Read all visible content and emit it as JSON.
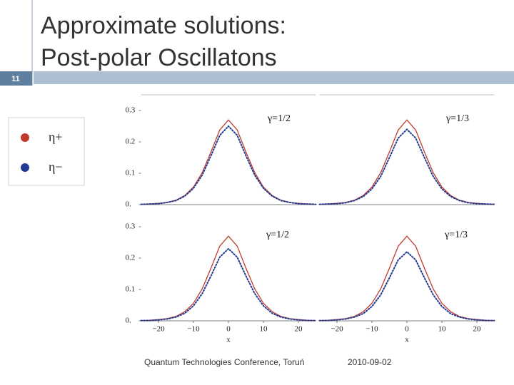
{
  "slide": {
    "number": "11",
    "title": "Approximate solutions: Post-polar Oscillatons",
    "footer": "Quantum Technologies Conference, Toruń",
    "date": "2010-09-02"
  },
  "chart_data": [
    {
      "type": "line",
      "annotation": "γ=1/2",
      "x": [
        -25,
        -22.5,
        -20,
        -17.5,
        -15,
        -12.5,
        -10,
        -7.5,
        -5,
        -2.5,
        0,
        2.5,
        5,
        7.5,
        10,
        12.5,
        15,
        17.5,
        20,
        22.5,
        25
      ],
      "series": [
        {
          "name": "η+",
          "color": "#c0392b",
          "values": [
            0.001,
            0.002,
            0.004,
            0.007,
            0.014,
            0.029,
            0.056,
            0.102,
            0.168,
            0.238,
            0.27,
            0.238,
            0.168,
            0.102,
            0.056,
            0.029,
            0.014,
            0.007,
            0.004,
            0.002,
            0.001
          ]
        },
        {
          "name": "η−",
          "color": "#1f3a93",
          "values": [
            0.001,
            0.002,
            0.003,
            0.007,
            0.013,
            0.027,
            0.052,
            0.094,
            0.156,
            0.221,
            0.25,
            0.221,
            0.156,
            0.094,
            0.052,
            0.027,
            0.013,
            0.007,
            0.003,
            0.002,
            0.001
          ]
        }
      ],
      "xlim": [
        -25,
        25
      ],
      "ylim": [
        0,
        0.3
      ],
      "yticks": [
        {
          "value": 0,
          "label": "0."
        },
        0.1,
        0.2,
        0.3
      ]
    },
    {
      "type": "line",
      "annotation": "γ=1/3",
      "x": [
        -25,
        -22.5,
        -20,
        -17.5,
        -15,
        -12.5,
        -10,
        -7.5,
        -5,
        -2.5,
        0,
        2.5,
        5,
        7.5,
        10,
        12.5,
        15,
        17.5,
        20,
        22.5,
        25
      ],
      "series": [
        {
          "name": "η+",
          "color": "#c0392b",
          "values": [
            0.001,
            0.002,
            0.004,
            0.007,
            0.014,
            0.029,
            0.056,
            0.102,
            0.168,
            0.238,
            0.27,
            0.238,
            0.168,
            0.102,
            0.056,
            0.029,
            0.014,
            0.007,
            0.004,
            0.002,
            0.001
          ]
        },
        {
          "name": "η−",
          "color": "#1f3a93",
          "values": [
            0.001,
            0.002,
            0.003,
            0.006,
            0.013,
            0.026,
            0.05,
            0.09,
            0.15,
            0.212,
            0.24,
            0.212,
            0.15,
            0.09,
            0.05,
            0.026,
            0.013,
            0.006,
            0.003,
            0.002,
            0.001
          ]
        }
      ],
      "xlim": [
        -25,
        25
      ],
      "ylim": [
        0,
        0.3
      ]
    },
    {
      "type": "line",
      "annotation": "γ=1/2",
      "xlabel": "x",
      "x": [
        -25,
        -22.5,
        -20,
        -17.5,
        -15,
        -12.5,
        -10,
        -7.5,
        -5,
        -2.5,
        0,
        2.5,
        5,
        7.5,
        10,
        12.5,
        15,
        17.5,
        20,
        22.5,
        25
      ],
      "series": [
        {
          "name": "η+",
          "color": "#c0392b",
          "values": [
            0.001,
            0.002,
            0.004,
            0.007,
            0.014,
            0.029,
            0.056,
            0.102,
            0.168,
            0.238,
            0.27,
            0.238,
            0.168,
            0.102,
            0.056,
            0.029,
            0.014,
            0.007,
            0.004,
            0.002,
            0.001
          ]
        },
        {
          "name": "η−",
          "color": "#1f3a93",
          "values": [
            0.001,
            0.001,
            0.003,
            0.006,
            0.012,
            0.024,
            0.048,
            0.087,
            0.143,
            0.203,
            0.23,
            0.203,
            0.143,
            0.087,
            0.048,
            0.024,
            0.012,
            0.006,
            0.003,
            0.001,
            0.001
          ]
        }
      ],
      "xlim": [
        -25,
        25
      ],
      "ylim": [
        0,
        0.3
      ],
      "yticks": [
        {
          "value": 0,
          "label": "0."
        },
        0.1,
        0.2,
        0.3
      ],
      "xticks": [
        {
          "value": -20,
          "label": "−20"
        },
        {
          "value": -10,
          "label": "−10"
        },
        0,
        10,
        20
      ]
    },
    {
      "type": "line",
      "annotation": "γ=1/3",
      "xlabel": "x",
      "x": [
        -25,
        -22.5,
        -20,
        -17.5,
        -15,
        -12.5,
        -10,
        -7.5,
        -5,
        -2.5,
        0,
        2.5,
        5,
        7.5,
        10,
        12.5,
        15,
        17.5,
        20,
        22.5,
        25
      ],
      "series": [
        {
          "name": "η+",
          "color": "#c0392b",
          "values": [
            0.001,
            0.002,
            0.004,
            0.007,
            0.014,
            0.029,
            0.056,
            0.102,
            0.168,
            0.238,
            0.27,
            0.238,
            0.168,
            0.102,
            0.056,
            0.029,
            0.014,
            0.007,
            0.004,
            0.002,
            0.001
          ]
        },
        {
          "name": "η−",
          "color": "#1f3a93",
          "values": [
            0.001,
            0.001,
            0.003,
            0.006,
            0.012,
            0.023,
            0.046,
            0.083,
            0.137,
            0.194,
            0.22,
            0.194,
            0.137,
            0.083,
            0.046,
            0.023,
            0.012,
            0.006,
            0.003,
            0.001,
            0.001
          ]
        }
      ],
      "xlim": [
        -25,
        25
      ],
      "ylim": [
        0,
        0.3
      ],
      "xticks": [
        {
          "value": -20,
          "label": "−20"
        },
        {
          "value": -10,
          "label": "−10"
        },
        0,
        10,
        20
      ]
    }
  ]
}
